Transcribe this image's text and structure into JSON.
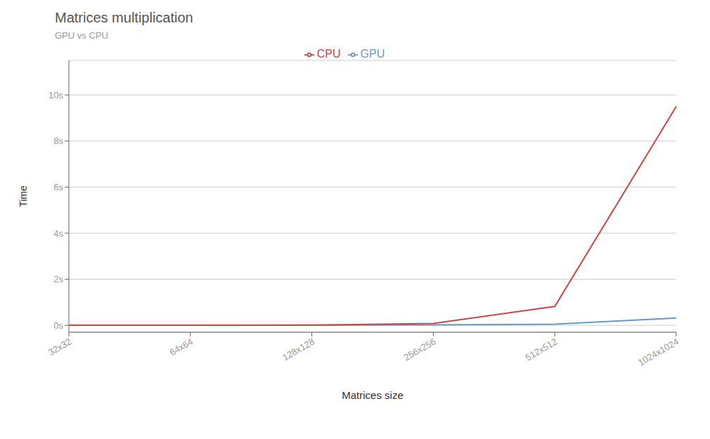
{
  "chart_data": {
    "type": "line",
    "title": "Matrices multiplication",
    "subtitle": "GPU vs CPU",
    "xlabel": "Matrices size",
    "ylabel": "Time",
    "categories": [
      "32x32",
      "64x64",
      "128x128",
      "256x256",
      "512x512",
      "1024x1024"
    ],
    "series": [
      {
        "name": "GPU",
        "color": "#6699cc",
        "values": [
          0.002,
          0.003,
          0.005,
          0.02,
          0.05,
          0.32
        ]
      },
      {
        "name": "CPU",
        "color": "#cc4444",
        "values": [
          0.003,
          0.005,
          0.012,
          0.08,
          0.82,
          9.5
        ]
      }
    ],
    "ylim": [
      -0.3,
      11.5
    ],
    "yticks": [
      {
        "value": 0,
        "label": "0s"
      },
      {
        "value": 2,
        "label": "2s"
      },
      {
        "value": 4,
        "label": "4s"
      },
      {
        "value": 6,
        "label": "6s"
      },
      {
        "value": 8,
        "label": "8s"
      },
      {
        "value": 10,
        "label": "10s"
      }
    ],
    "grid": true,
    "legend": "top"
  }
}
